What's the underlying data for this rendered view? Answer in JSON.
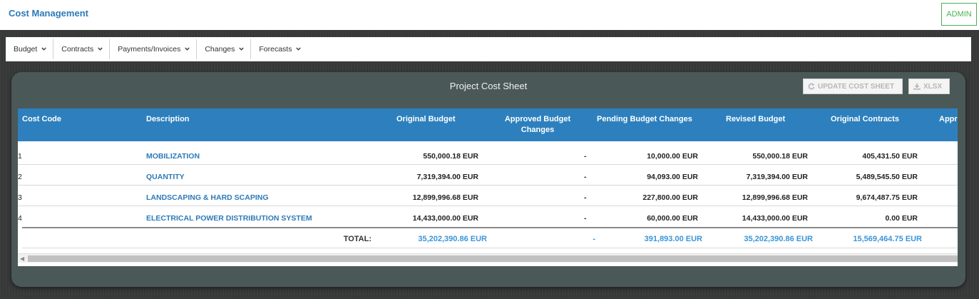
{
  "app": {
    "title": "Cost Management",
    "admin_label": "ADMIN"
  },
  "menu": {
    "items": [
      {
        "label": "Budget"
      },
      {
        "label": "Contracts"
      },
      {
        "label": "Payments/Invoices"
      },
      {
        "label": "Changes"
      },
      {
        "label": "Forecasts"
      }
    ]
  },
  "panel": {
    "title": "Project Cost Sheet",
    "update_label": "UPDATE COST SHEET",
    "update_icon": "refresh-icon",
    "xlsx_label": "XLSX",
    "xlsx_icon": "download-icon"
  },
  "table": {
    "headers": {
      "cost_code": "Cost Code",
      "description": "Description",
      "original_budget": "Original Budget",
      "approved_changes_1": "Approved Budget",
      "approved_changes_2": "Changes",
      "pending_changes": "Pending Budget Changes",
      "revised_budget": "Revised Budget",
      "original_contracts": "Original Contracts",
      "cut_off": "Appr"
    },
    "rows": [
      {
        "code": "1",
        "description": "MOBILIZATION",
        "original_budget": "550,000.18 EUR",
        "approved_changes": "-",
        "pending_changes": "10,000.00 EUR",
        "revised_budget": "550,000.18 EUR",
        "original_contracts": "405,431.50 EUR"
      },
      {
        "code": "2",
        "description": "QUANTITY",
        "original_budget": "7,319,394.00 EUR",
        "approved_changes": "-",
        "pending_changes": "94,093.00 EUR",
        "revised_budget": "7,319,394.00 EUR",
        "original_contracts": "5,489,545.50 EUR"
      },
      {
        "code": "3",
        "description": "LANDSCAPING & HARD SCAPING",
        "original_budget": "12,899,996.68 EUR",
        "approved_changes": "-",
        "pending_changes": "227,800.00 EUR",
        "revised_budget": "12,899,996.68 EUR",
        "original_contracts": "9,674,487.75 EUR"
      },
      {
        "code": "4",
        "description": "ELECTRICAL POWER DISTRIBUTION SYSTEM",
        "original_budget": "14,433,000.00 EUR",
        "approved_changes": "-",
        "pending_changes": "60,000.00 EUR",
        "revised_budget": "14,433,000.00 EUR",
        "original_contracts": "0.00 EUR"
      }
    ],
    "total": {
      "label": "TOTAL:",
      "original_budget": "35,202,390.86 EUR",
      "approved_changes": "-",
      "pending_changes": "391,893.00 EUR",
      "revised_budget": "35,202,390.86 EUR",
      "original_contracts": "15,569,464.75 EUR"
    }
  },
  "colors": {
    "accent": "#2d7ab8",
    "header_bg": "#2d80bd",
    "total_text": "#3a95d8",
    "admin_green": "#4caf50"
  }
}
